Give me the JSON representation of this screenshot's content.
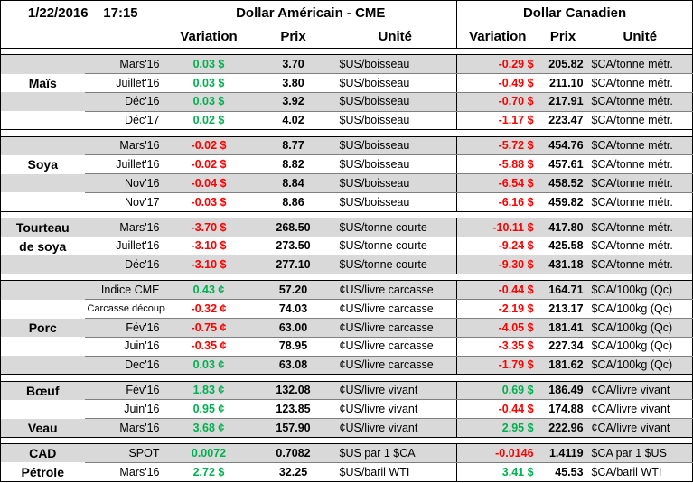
{
  "header": {
    "date": "1/22/2016",
    "time": "17:15",
    "usd_title": "Dollar Américain - CME",
    "cad_title": "Dollar Canadien",
    "col_variation": "Variation",
    "col_prix": "Prix",
    "col_unite": "Unité"
  },
  "colors": {
    "green": "#00b050",
    "red": "#ff0000",
    "shade": "#d9d9d9"
  },
  "groups": [
    {
      "label": [
        "Maïs"
      ],
      "label_row": 1,
      "rows": [
        {
          "contract": "Mars'16",
          "usd_var": "0.03 $",
          "usd_var_color": "green",
          "usd_price": "3.70",
          "usd_unit": "$US/boisseau",
          "cad_var": "-0.29 $",
          "cad_var_color": "red",
          "cad_price": "205.82",
          "cad_unit": "$CA/tonne métr."
        },
        {
          "contract": "Juillet'16",
          "usd_var": "0.03 $",
          "usd_var_color": "green",
          "usd_price": "3.80",
          "usd_unit": "$US/boisseau",
          "cad_var": "-0.49 $",
          "cad_var_color": "red",
          "cad_price": "211.10",
          "cad_unit": "$CA/tonne métr."
        },
        {
          "contract": "Déc'16",
          "usd_var": "0.03 $",
          "usd_var_color": "green",
          "usd_price": "3.92",
          "usd_unit": "$US/boisseau",
          "cad_var": "-0.70 $",
          "cad_var_color": "red",
          "cad_price": "217.91",
          "cad_unit": "$CA/tonne métr."
        },
        {
          "contract": "Déc'17",
          "usd_var": "0.02 $",
          "usd_var_color": "green",
          "usd_price": "4.02",
          "usd_unit": "$US/boisseau",
          "cad_var": "-1.17 $",
          "cad_var_color": "red",
          "cad_price": "223.47",
          "cad_unit": "$CA/tonne métr."
        }
      ]
    },
    {
      "label": [
        "Soya"
      ],
      "label_row": 1,
      "rows": [
        {
          "contract": "Mars'16",
          "usd_var": "-0.02 $",
          "usd_var_color": "red",
          "usd_price": "8.77",
          "usd_unit": "$US/boisseau",
          "cad_var": "-5.72 $",
          "cad_var_color": "red",
          "cad_price": "454.76",
          "cad_unit": "$CA/tonne métr."
        },
        {
          "contract": "Juillet'16",
          "usd_var": "-0.02 $",
          "usd_var_color": "red",
          "usd_price": "8.82",
          "usd_unit": "$US/boisseau",
          "cad_var": "-5.88 $",
          "cad_var_color": "red",
          "cad_price": "457.61",
          "cad_unit": "$CA/tonne métr."
        },
        {
          "contract": "Nov'16",
          "usd_var": "-0.04 $",
          "usd_var_color": "red",
          "usd_price": "8.84",
          "usd_unit": "$US/boisseau",
          "cad_var": "-6.54 $",
          "cad_var_color": "red",
          "cad_price": "458.52",
          "cad_unit": "$CA/tonne métr."
        },
        {
          "contract": "Nov'17",
          "usd_var": "-0.03 $",
          "usd_var_color": "red",
          "usd_price": "8.86",
          "usd_unit": "$US/boisseau",
          "cad_var": "-6.16 $",
          "cad_var_color": "red",
          "cad_price": "459.82",
          "cad_unit": "$CA/tonne métr."
        }
      ]
    },
    {
      "label": [
        "Tourteau",
        "de soya"
      ],
      "label_row": 0,
      "rows": [
        {
          "contract": "Mars'16",
          "usd_var": "-3.70 $",
          "usd_var_color": "red",
          "usd_price": "268.50",
          "usd_unit": "$US/tonne courte",
          "cad_var": "-10.11 $",
          "cad_var_color": "red",
          "cad_price": "417.80",
          "cad_unit": "$CA/tonne métr."
        },
        {
          "contract": "Juillet'16",
          "usd_var": "-3.10 $",
          "usd_var_color": "red",
          "usd_price": "273.50",
          "usd_unit": "$US/tonne courte",
          "cad_var": "-9.24 $",
          "cad_var_color": "red",
          "cad_price": "425.58",
          "cad_unit": "$CA/tonne métr."
        },
        {
          "contract": "Déc'16",
          "usd_var": "-3.10 $",
          "usd_var_color": "red",
          "usd_price": "277.10",
          "usd_unit": "$US/tonne courte",
          "cad_var": "-9.30 $",
          "cad_var_color": "red",
          "cad_price": "431.18",
          "cad_unit": "$CA/tonne métr."
        }
      ]
    },
    {
      "label": [
        "Porc"
      ],
      "label_row": 2,
      "rows": [
        {
          "contract": "Indice CME",
          "usd_var": "0.43 ¢",
          "usd_var_color": "green",
          "usd_price": "57.20",
          "usd_unit": "¢US/livre carcasse",
          "cad_var": "-0.44 $",
          "cad_var_color": "red",
          "cad_price": "164.71",
          "cad_unit": "$CA/100kg (Qc)"
        },
        {
          "contract": "Carcasse découpée",
          "usd_var": "-0.32 ¢",
          "usd_var_color": "red",
          "usd_price": "74.03",
          "usd_unit": "¢US/livre carcasse",
          "cad_var": "-2.19 $",
          "cad_var_color": "red",
          "cad_price": "213.17",
          "cad_unit": "$CA/100kg (Qc)"
        },
        {
          "contract": "Fév'16",
          "usd_var": "-0.75 ¢",
          "usd_var_color": "red",
          "usd_price": "63.00",
          "usd_unit": "¢US/livre carcasse",
          "cad_var": "-4.05 $",
          "cad_var_color": "red",
          "cad_price": "181.41",
          "cad_unit": "$CA/100kg (Qc)"
        },
        {
          "contract": "Juin'16",
          "usd_var": "-0.35 ¢",
          "usd_var_color": "red",
          "usd_price": "78.95",
          "usd_unit": "¢US/livre carcasse",
          "cad_var": "-3.35 $",
          "cad_var_color": "red",
          "cad_price": "227.34",
          "cad_unit": "$CA/100kg (Qc)"
        },
        {
          "contract": "Dec'16",
          "usd_var": "0.03 ¢",
          "usd_var_color": "green",
          "usd_price": "63.08",
          "usd_unit": "¢US/livre carcasse",
          "cad_var": "-1.79 $",
          "cad_var_color": "red",
          "cad_price": "181.62",
          "cad_unit": "$CA/100kg (Qc)"
        }
      ]
    },
    {
      "label": [
        "Bœuf",
        "",
        "Veau"
      ],
      "label_row": 0,
      "rows": [
        {
          "contract": "Fév'16",
          "usd_var": "1.83 ¢",
          "usd_var_color": "green",
          "usd_price": "132.08",
          "usd_unit": "¢US/livre vivant",
          "cad_var": "0.69 $",
          "cad_var_color": "green",
          "cad_price": "186.49",
          "cad_unit": "¢CA/livre vivant"
        },
        {
          "contract": "Juin'16",
          "usd_var": "0.95 ¢",
          "usd_var_color": "green",
          "usd_price": "123.85",
          "usd_unit": "¢US/livre vivant",
          "cad_var": "-0.44 $",
          "cad_var_color": "red",
          "cad_price": "174.88",
          "cad_unit": "¢CA/livre vivant"
        },
        {
          "contract": "Mars'16",
          "usd_var": "3.68 ¢",
          "usd_var_color": "green",
          "usd_price": "157.90",
          "usd_unit": "¢US/livre vivant",
          "cad_var": "2.95 $",
          "cad_var_color": "green",
          "cad_price": "222.96",
          "cad_unit": "¢CA/livre vivant"
        }
      ]
    },
    {
      "label": [
        "CAD",
        "Pétrole"
      ],
      "label_row": 0,
      "rows": [
        {
          "contract": "SPOT",
          "usd_var": "0.0072",
          "usd_var_color": "green",
          "usd_price": "0.7082",
          "usd_unit": "$US par 1 $CA",
          "cad_var": "-0.0146",
          "cad_var_color": "red",
          "cad_price": "1.4119",
          "cad_unit": "$CA par 1 $US"
        },
        {
          "contract": "Mars'16",
          "usd_var": "2.72 $",
          "usd_var_color": "green",
          "usd_price": "32.25",
          "usd_unit": "$US/baril WTI",
          "cad_var": "3.41 $",
          "cad_var_color": "green",
          "cad_price": "45.53",
          "cad_unit": "$CA/baril WTI"
        }
      ]
    }
  ]
}
